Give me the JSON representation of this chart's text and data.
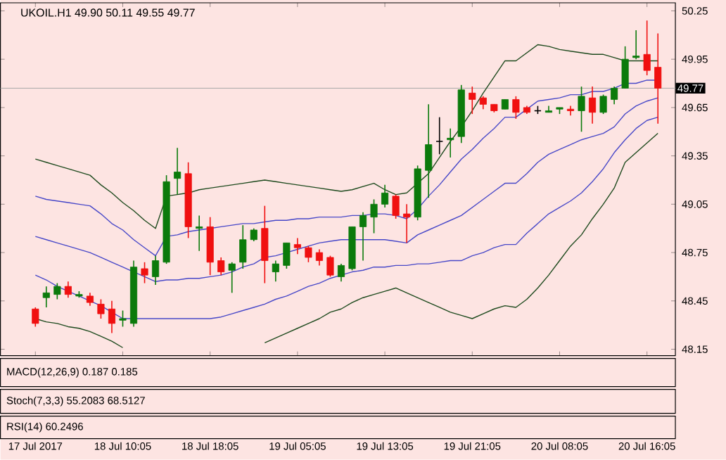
{
  "chart_data": {
    "type": "candlestick",
    "title": "UKOIL.H1  49.90 50.11 49.55 49.77",
    "categories": [
      "17 Jul 2017",
      null,
      null,
      null,
      null,
      null,
      null,
      null,
      "18 Jul 10:05",
      null,
      null,
      null,
      null,
      null,
      null,
      null,
      "18 Jul 18:05",
      null,
      null,
      null,
      null,
      null,
      null,
      null,
      "19 Jul 05:05",
      null,
      null,
      null,
      null,
      null,
      null,
      null,
      "19 Jul 13:05",
      null,
      null,
      null,
      null,
      null,
      null,
      null,
      "19 Jul 21:05",
      null,
      null,
      null,
      null,
      null,
      null,
      null,
      "20 Jul 08:05",
      null,
      null,
      null,
      null,
      null,
      null,
      null,
      "20 Jul 16:05",
      null
    ],
    "ohlc": [
      [
        48.4,
        48.41,
        48.29,
        48.31
      ],
      [
        48.47,
        48.54,
        48.41,
        48.5
      ],
      [
        48.49,
        48.56,
        48.46,
        48.54
      ],
      [
        48.54,
        48.57,
        48.47,
        48.49
      ],
      [
        48.48,
        48.51,
        48.47,
        48.49
      ],
      [
        48.48,
        48.5,
        48.42,
        48.44
      ],
      [
        48.43,
        48.46,
        48.34,
        48.37
      ],
      [
        48.4,
        48.45,
        48.25,
        48.31
      ],
      [
        48.33,
        48.39,
        48.29,
        48.34
      ],
      [
        48.31,
        48.7,
        48.29,
        48.66
      ],
      [
        48.65,
        48.69,
        48.56,
        48.61
      ],
      [
        48.6,
        48.73,
        48.55,
        48.7
      ],
      [
        48.69,
        49.23,
        48.68,
        49.19
      ],
      [
        49.21,
        49.4,
        49.11,
        49.25
      ],
      [
        49.24,
        49.31,
        48.84,
        48.91
      ],
      [
        48.9,
        48.98,
        48.76,
        48.91
      ],
      [
        48.91,
        48.97,
        48.61,
        48.69
      ],
      [
        48.7,
        48.72,
        48.61,
        48.63
      ],
      [
        48.64,
        48.69,
        48.5,
        48.68
      ],
      [
        48.69,
        48.92,
        48.65,
        48.83
      ],
      [
        48.83,
        48.9,
        48.82,
        48.89
      ],
      [
        48.9,
        49.04,
        48.56,
        48.7
      ],
      [
        48.63,
        48.7,
        48.57,
        48.68
      ],
      [
        48.67,
        48.81,
        48.65,
        48.81
      ],
      [
        48.8,
        48.84,
        48.74,
        48.78
      ],
      [
        48.78,
        48.79,
        48.69,
        48.72
      ],
      [
        48.75,
        48.77,
        48.67,
        48.7
      ],
      [
        48.72,
        48.73,
        48.6,
        48.61
      ],
      [
        48.6,
        48.68,
        48.57,
        48.67
      ],
      [
        48.65,
        48.91,
        48.64,
        48.91
      ],
      [
        48.91,
        49.0,
        48.7,
        48.98
      ],
      [
        48.97,
        49.08,
        48.87,
        49.05
      ],
      [
        49.05,
        49.17,
        49.03,
        49.12
      ],
      [
        49.1,
        49.11,
        48.96,
        48.98
      ],
      [
        48.99,
        49.05,
        48.81,
        48.97
      ],
      [
        48.97,
        49.29,
        48.95,
        49.27
      ],
      [
        49.26,
        49.67,
        49.09,
        49.42
      ],
      [
        49.44,
        49.59,
        49.36,
        49.44
      ],
      [
        49.45,
        49.52,
        49.34,
        49.46
      ],
      [
        49.47,
        49.79,
        49.43,
        49.76
      ],
      [
        49.74,
        49.78,
        49.61,
        49.7
      ],
      [
        49.71,
        49.72,
        49.64,
        49.67
      ],
      [
        49.67,
        49.67,
        49.62,
        49.63
      ],
      [
        49.64,
        49.7,
        49.64,
        49.7
      ],
      [
        49.7,
        49.72,
        49.58,
        49.62
      ],
      [
        49.65,
        49.66,
        49.61,
        49.62
      ],
      [
        49.63,
        49.66,
        49.61,
        49.63
      ],
      [
        49.62,
        49.66,
        49.62,
        49.63
      ],
      [
        49.64,
        49.65,
        49.61,
        49.65
      ],
      [
        49.64,
        49.66,
        49.6,
        49.63
      ],
      [
        49.63,
        49.78,
        49.5,
        49.72
      ],
      [
        49.71,
        49.78,
        49.55,
        49.62
      ],
      [
        49.62,
        49.73,
        49.61,
        49.72
      ],
      [
        49.7,
        49.78,
        49.67,
        49.77
      ],
      [
        49.77,
        50.03,
        49.77,
        49.95
      ],
      [
        49.96,
        50.13,
        49.95,
        49.97
      ],
      [
        49.98,
        50.19,
        49.85,
        49.88
      ],
      [
        49.9,
        50.11,
        49.55,
        49.77
      ]
    ],
    "series": [
      {
        "type": "line",
        "color": "#1e4a1e",
        "values": [
          49.33,
          49.31,
          49.29,
          49.27,
          49.25,
          49.23,
          49.17,
          49.12,
          49.06,
          49.01,
          48.95,
          48.9,
          49.1,
          49.11,
          49.12,
          49.14,
          49.15,
          49.16,
          49.17,
          49.18,
          49.19,
          49.2,
          49.19,
          49.18,
          49.17,
          49.16,
          49.15,
          49.14,
          49.13,
          49.14,
          49.16,
          49.18,
          49.14,
          49.11,
          49.12,
          49.18,
          49.24,
          49.34,
          49.44,
          49.53,
          49.63,
          49.74,
          49.84,
          49.94,
          49.94,
          49.99,
          50.04,
          50.03,
          50.01,
          50.0,
          49.99,
          49.98,
          49.98,
          49.96,
          49.94,
          49.94,
          49.94,
          49.94
        ]
      },
      {
        "type": "line",
        "color": "#4848c8",
        "values": [
          49.1,
          49.08,
          49.07,
          49.06,
          49.05,
          49.04,
          48.99,
          48.93,
          48.89,
          48.83,
          48.78,
          48.73,
          48.85,
          48.86,
          48.88,
          48.89,
          48.9,
          48.91,
          48.92,
          48.93,
          48.93,
          48.94,
          48.95,
          48.95,
          48.96,
          48.96,
          48.97,
          48.97,
          48.97,
          48.98,
          48.98,
          48.99,
          48.99,
          48.98,
          48.96,
          49.02,
          49.1,
          49.17,
          49.25,
          49.33,
          49.39,
          49.46,
          49.52,
          49.59,
          49.59,
          49.64,
          49.69,
          49.7,
          49.71,
          49.73,
          49.73,
          49.75,
          49.75,
          49.77,
          49.8,
          49.8,
          49.82,
          49.82
        ]
      },
      {
        "type": "line",
        "color": "#4848c8",
        "values": [
          48.85,
          48.83,
          48.81,
          48.79,
          48.77,
          48.75,
          48.72,
          48.69,
          48.66,
          48.63,
          48.6,
          48.57,
          48.58,
          48.58,
          48.59,
          48.59,
          48.6,
          48.61,
          48.63,
          48.66,
          48.68,
          48.72,
          48.73,
          48.75,
          48.77,
          48.79,
          48.81,
          48.82,
          48.83,
          48.83,
          48.83,
          48.83,
          48.83,
          48.82,
          48.81,
          48.86,
          48.89,
          48.92,
          48.95,
          48.98,
          49.03,
          49.08,
          49.13,
          49.18,
          49.18,
          49.24,
          49.31,
          49.36,
          49.39,
          49.42,
          49.45,
          49.47,
          49.49,
          49.53,
          49.61,
          49.66,
          49.69,
          49.71
        ]
      },
      {
        "type": "line",
        "color": "#4848c8",
        "values": [
          48.61,
          48.58,
          48.54,
          48.51,
          48.48,
          48.45,
          48.42,
          48.38,
          48.34,
          48.34,
          48.34,
          48.34,
          48.34,
          48.34,
          48.34,
          48.34,
          48.34,
          48.35,
          48.37,
          48.39,
          48.41,
          48.43,
          48.46,
          48.48,
          48.51,
          48.54,
          48.56,
          48.59,
          48.61,
          48.63,
          48.64,
          48.66,
          48.66,
          48.67,
          48.67,
          48.68,
          48.68,
          48.69,
          48.7,
          48.7,
          48.73,
          48.75,
          48.78,
          48.8,
          48.8,
          48.87,
          48.93,
          48.99,
          49.03,
          49.07,
          49.12,
          49.19,
          49.27,
          49.37,
          49.45,
          49.52,
          49.57,
          49.59
        ]
      },
      {
        "type": "line",
        "color": "#1e4a1e",
        "values": [
          48.34,
          48.32,
          48.31,
          48.29,
          48.28,
          48.26,
          48.23,
          48.2,
          48.16,
          null,
          null,
          null,
          null,
          null,
          null,
          null,
          null,
          null,
          null,
          null,
          null,
          48.19,
          48.22,
          48.25,
          48.28,
          48.31,
          48.34,
          48.38,
          48.4,
          48.44,
          48.47,
          48.49,
          48.51,
          48.53,
          48.5,
          48.47,
          48.44,
          48.41,
          48.38,
          48.36,
          48.34,
          48.37,
          48.4,
          48.42,
          48.41,
          48.46,
          48.53,
          48.61,
          48.7,
          48.79,
          48.86,
          48.96,
          49.05,
          49.15,
          49.31,
          49.37,
          49.43,
          49.49
        ]
      }
    ],
    "ylim": [
      48.11,
      50.3
    ],
    "yticks": [
      48.15,
      48.45,
      48.75,
      49.05,
      49.35,
      49.65,
      49.95,
      50.25
    ],
    "ref_lines": [
      {
        "axis": "y",
        "value": 49.77,
        "label": "49.77",
        "color": "#a8a8a8"
      }
    ],
    "annotations": [
      "MACD(12,26,9) 0.187 0.185",
      "Stoch(7,3,3) 55.2083 68.5127",
      "RSI(14) 60.2496"
    ]
  }
}
